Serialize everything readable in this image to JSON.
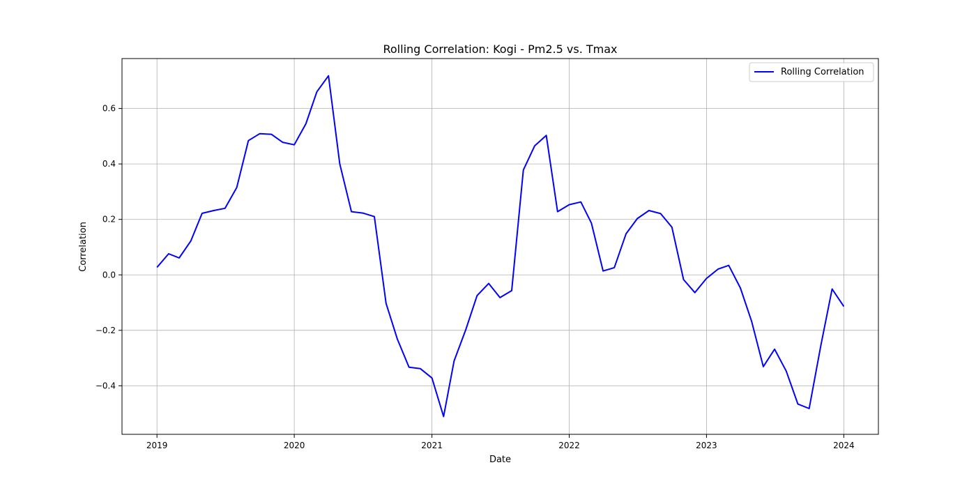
{
  "chart_data": {
    "type": "line",
    "title": "Rolling Correlation: Kogi - Pm2.5 vs. Tmax",
    "xlabel": "Date",
    "ylabel": "Correlation",
    "xlim": [
      "2018-09-30",
      "2024-04-02"
    ],
    "ylim": [
      -0.575,
      0.78
    ],
    "x_ticks": [
      "2019",
      "2020",
      "2021",
      "2022",
      "2023",
      "2024"
    ],
    "y_ticks": [
      -0.4,
      -0.2,
      0.0,
      0.2,
      0.4,
      0.6
    ],
    "y_tick_labels": [
      "−0.4",
      "−0.2",
      "0.0",
      "0.2",
      "0.4",
      "0.6"
    ],
    "grid": true,
    "legend_position": "top-right",
    "series": [
      {
        "name": "Rolling Correlation",
        "color": "#0000ff",
        "x": [
          "2019-01-01",
          "2019-02-01",
          "2019-03-01",
          "2019-04-01",
          "2019-05-01",
          "2019-06-01",
          "2019-07-01",
          "2019-08-01",
          "2019-09-01",
          "2019-10-01",
          "2019-11-01",
          "2019-12-01",
          "2020-01-01",
          "2020-02-01",
          "2020-03-01",
          "2020-04-01",
          "2020-05-01",
          "2020-06-01",
          "2020-07-01",
          "2020-08-01",
          "2020-09-01",
          "2020-10-01",
          "2020-11-01",
          "2020-12-01",
          "2021-01-01",
          "2021-02-01",
          "2021-03-01",
          "2021-04-01",
          "2021-05-01",
          "2021-06-01",
          "2021-07-01",
          "2021-08-01",
          "2021-09-01",
          "2021-10-01",
          "2021-11-01",
          "2021-12-01",
          "2022-01-01",
          "2022-02-01",
          "2022-03-01",
          "2022-04-01",
          "2022-05-01",
          "2022-06-01",
          "2022-07-01",
          "2022-08-01",
          "2022-09-01",
          "2022-10-01",
          "2022-11-01",
          "2022-12-01",
          "2023-01-01",
          "2023-02-01",
          "2023-03-01",
          "2023-04-01",
          "2023-05-01",
          "2023-06-01",
          "2023-07-01",
          "2023-08-01",
          "2023-09-01",
          "2023-10-01",
          "2023-11-01",
          "2023-12-01",
          "2024-01-01"
        ],
        "y": [
          0.027,
          0.076,
          0.061,
          0.122,
          0.222,
          0.232,
          0.24,
          0.315,
          0.484,
          0.509,
          0.507,
          0.478,
          0.469,
          0.545,
          0.66,
          0.718,
          0.4,
          0.228,
          0.223,
          0.21,
          -0.103,
          -0.231,
          -0.333,
          -0.338,
          -0.372,
          -0.511,
          -0.31,
          -0.198,
          -0.075,
          -0.031,
          -0.082,
          -0.057,
          0.378,
          0.465,
          0.503,
          0.228,
          0.253,
          0.263,
          0.187,
          0.014,
          0.026,
          0.148,
          0.203,
          0.232,
          0.221,
          0.172,
          -0.017,
          -0.064,
          -0.013,
          0.021,
          0.034,
          -0.047,
          -0.168,
          -0.331,
          -0.268,
          -0.347,
          -0.466,
          -0.482,
          -0.254,
          -0.051,
          -0.114
        ]
      }
    ]
  }
}
